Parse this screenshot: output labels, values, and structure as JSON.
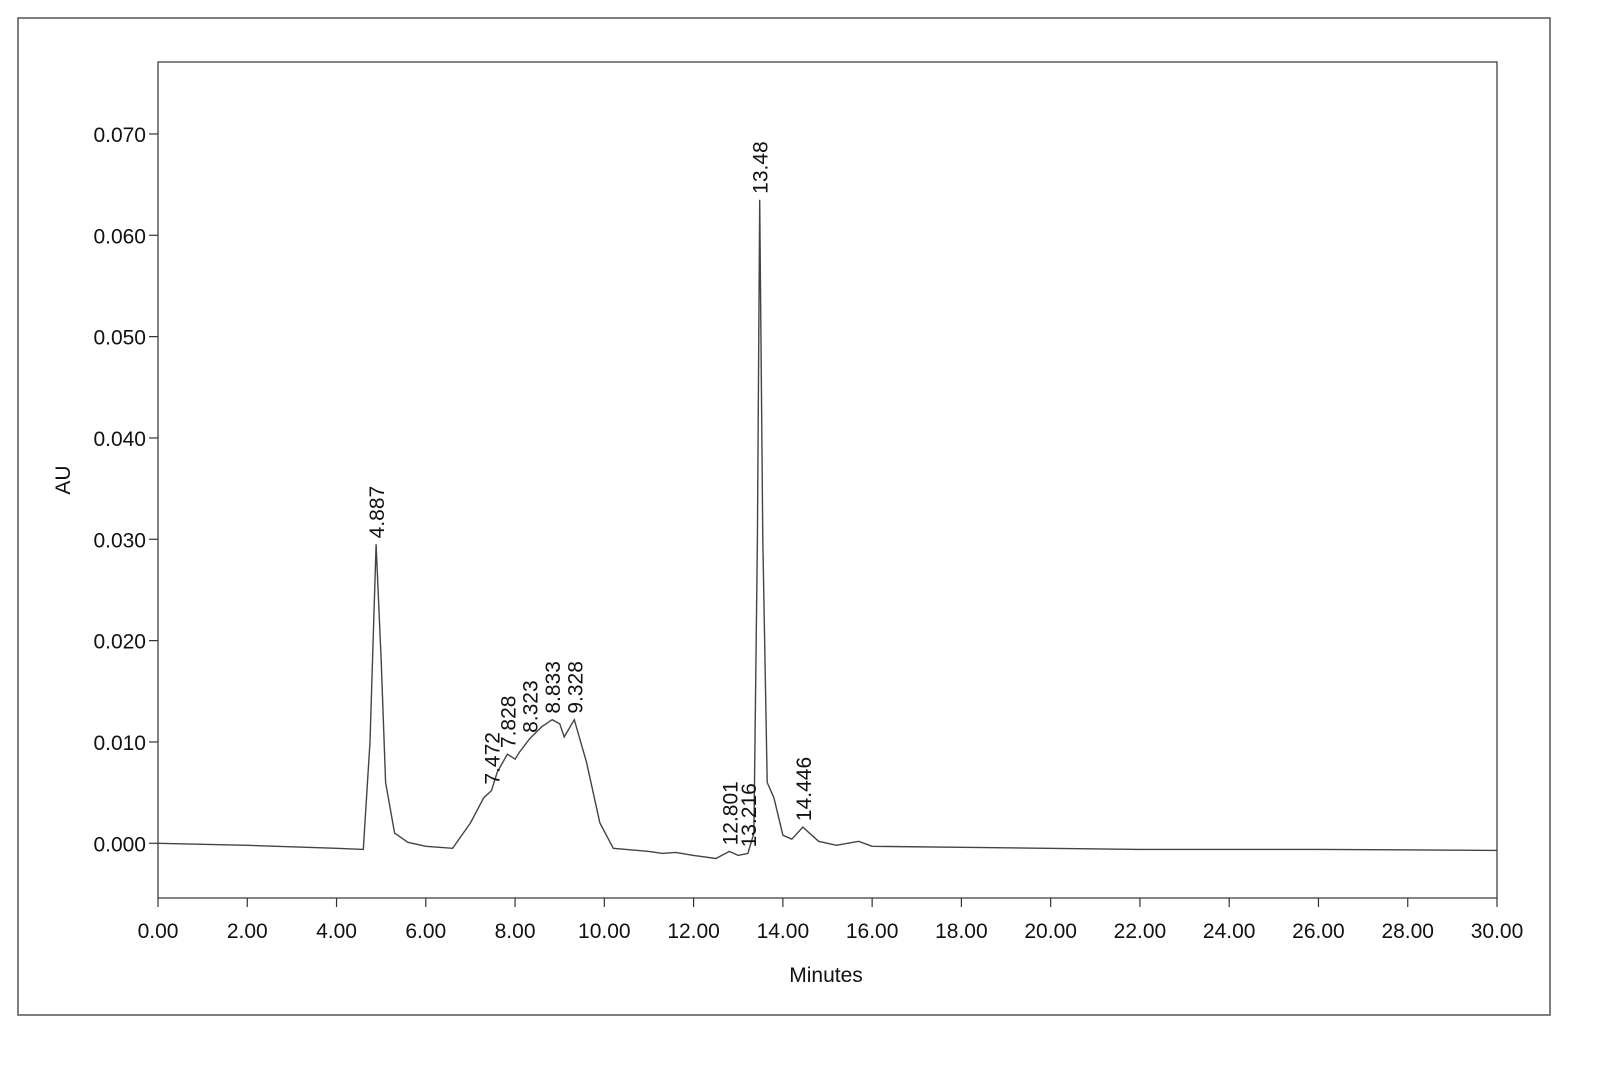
{
  "chart_data": {
    "type": "line",
    "x_label": "Minutes",
    "y_label": "AU",
    "x": [
      0,
      2,
      4,
      4.6,
      4.75,
      4.887,
      5.0,
      5.1,
      5.3,
      5.6,
      6.0,
      6.6,
      7.0,
      7.3,
      7.472,
      7.6,
      7.828,
      8.0,
      8.1,
      8.323,
      8.6,
      8.833,
      9.0,
      9.1,
      9.328,
      9.6,
      9.9,
      10.2,
      11.0,
      11.3,
      11.6,
      12.0,
      12.5,
      12.801,
      13.0,
      13.216,
      13.35,
      13.43,
      13.48,
      13.55,
      13.65,
      13.8,
      14.0,
      14.2,
      14.446,
      14.8,
      15.2,
      15.7,
      16.0,
      18,
      22,
      26,
      30
    ],
    "values": [
      0.0,
      -0.0002,
      -0.0005,
      -0.0006,
      0.01,
      0.0295,
      0.018,
      0.006,
      0.001,
      0.0001,
      -0.0003,
      -0.0005,
      0.002,
      0.0045,
      0.0052,
      0.007,
      0.0088,
      0.0083,
      0.009,
      0.0103,
      0.0115,
      0.0122,
      0.0118,
      0.0105,
      0.0122,
      0.008,
      0.002,
      -0.0005,
      -0.0008,
      -0.001,
      -0.0009,
      -0.0012,
      -0.0015,
      -0.0008,
      -0.0012,
      -0.001,
      0.001,
      0.03,
      0.0635,
      0.03,
      0.006,
      0.0045,
      0.0008,
      0.0004,
      0.0016,
      0.0002,
      -0.0002,
      0.0002,
      -0.0003,
      -0.0004,
      -0.0006,
      -0.0006,
      -0.0007
    ],
    "color": "#444444",
    "peaks": {
      "x": [
        4.887,
        7.472,
        7.828,
        8.323,
        8.833,
        9.328,
        12.801,
        13.216,
        13.48,
        14.446
      ],
      "y": [
        0.0295,
        0.0052,
        0.0088,
        0.0103,
        0.0122,
        0.0122,
        -0.0008,
        -0.001,
        0.0635,
        0.0016
      ]
    },
    "xlim": [
      0,
      30
    ],
    "xticks": [
      {
        "value": 0,
        "label": "0.00"
      },
      {
        "value": 2,
        "label": "2.00"
      },
      {
        "value": 4,
        "label": "4.00"
      },
      {
        "value": 6,
        "label": "6.00"
      },
      {
        "value": 8,
        "label": "8.00"
      },
      {
        "value": 10,
        "label": "10.00"
      },
      {
        "value": 12,
        "label": "12.00"
      },
      {
        "value": 14,
        "label": "14.00"
      },
      {
        "value": 16,
        "label": "16.00"
      },
      {
        "value": 18,
        "label": "18.00"
      },
      {
        "value": 20,
        "label": "20.00"
      },
      {
        "value": 22,
        "label": "22.00"
      },
      {
        "value": 24,
        "label": "24.00"
      },
      {
        "value": 26,
        "label": "26.00"
      },
      {
        "value": 28,
        "label": "28.00"
      },
      {
        "value": 30,
        "label": "30.00"
      }
    ],
    "ylim": [
      -0.0054,
      0.0771
    ],
    "yticks": [
      {
        "value": 0,
        "label": "0.000"
      },
      {
        "value": 0.01,
        "label": "0.010"
      },
      {
        "value": 0.02,
        "label": "0.020"
      },
      {
        "value": 0.03,
        "label": "0.030"
      },
      {
        "value": 0.04,
        "label": "0.040"
      },
      {
        "value": 0.05,
        "label": "0.050"
      },
      {
        "value": 0.06,
        "label": "0.060"
      },
      {
        "value": 0.07,
        "label": "0.070"
      }
    ]
  }
}
